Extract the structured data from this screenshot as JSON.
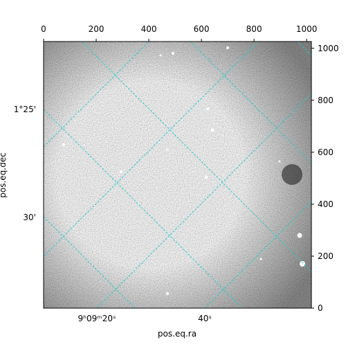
{
  "chart_data": {
    "type": "image",
    "xlabel": "pos.eq.ra",
    "ylabel": "pos.eq.dec",
    "xlim": [
      0,
      1018
    ],
    "ylim": [
      0,
      1026
    ],
    "xticks": [
      0,
      200,
      400,
      600,
      800,
      1000
    ],
    "yticks": [
      0,
      200,
      400,
      600,
      800,
      1000
    ],
    "ra_ticks": [
      "9ʰ09ᵐ20ˢ",
      "40ˢ"
    ],
    "dec_ticks": [
      "1°25'",
      "30'"
    ],
    "grid_color": "#22cccc"
  }
}
